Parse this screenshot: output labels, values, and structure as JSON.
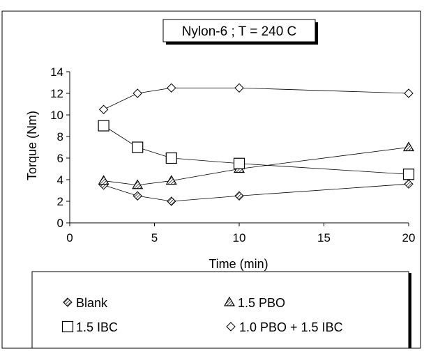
{
  "chart_data": {
    "type": "line",
    "title": "Nylon-6 ; T = 240 C",
    "xlabel": "Time (min)",
    "ylabel": "Torque (Nm)",
    "xlim": [
      0,
      20
    ],
    "ylim": [
      0,
      14
    ],
    "xticks": [
      "0",
      "5",
      "10",
      "15",
      "20"
    ],
    "yticks": [
      "0",
      "2",
      "4",
      "6",
      "8",
      "10",
      "12",
      "14"
    ],
    "grid": false,
    "legend_position": "bottom",
    "x": [
      2,
      4,
      6,
      10,
      20
    ],
    "series": [
      {
        "name": "Blank",
        "marker": "diamond-hatched",
        "values": [
          3.5,
          2.5,
          2.0,
          2.5,
          3.6
        ]
      },
      {
        "name": "1.5 PBO",
        "marker": "triangle-hatched",
        "values": [
          3.9,
          3.5,
          3.9,
          5.0,
          7.0
        ]
      },
      {
        "name": "1.5 IBC",
        "marker": "square-open",
        "values": [
          9.0,
          7.0,
          6.0,
          5.5,
          4.5
        ]
      },
      {
        "name": "1.0 PBO + 1.5 IBC",
        "marker": "diamond-open",
        "values": [
          10.5,
          12.0,
          12.5,
          12.5,
          12.0
        ]
      }
    ]
  }
}
